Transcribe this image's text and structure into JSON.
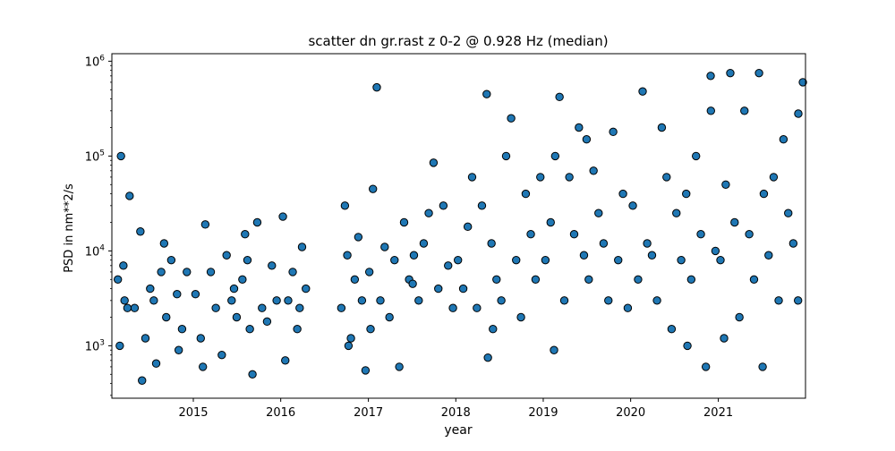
{
  "chart_data": {
    "type": "scatter",
    "title": "scatter dn gr.rast z 0-2 @ 0.928 Hz (median)",
    "xlabel": "year",
    "ylabel": "PSD in nm**2/s",
    "xlim": [
      "2014-01-26",
      "2021-12-31"
    ],
    "ylim": [
      280,
      1200000
    ],
    "yscale": "log",
    "x_ticks": [
      {
        "value": "2015-01-01",
        "label": "2015"
      },
      {
        "value": "2016-01-01",
        "label": "2016"
      },
      {
        "value": "2017-01-01",
        "label": "2017"
      },
      {
        "value": "2018-01-01",
        "label": "2018"
      },
      {
        "value": "2019-01-01",
        "label": "2019"
      },
      {
        "value": "2020-01-01",
        "label": "2020"
      },
      {
        "value": "2021-01-01",
        "label": "2021"
      }
    ],
    "y_ticks": [
      {
        "value": 1000,
        "base": "10",
        "exp": "3"
      },
      {
        "value": 10000,
        "base": "10",
        "exp": "4"
      },
      {
        "value": 100000,
        "base": "10",
        "exp": "5"
      },
      {
        "value": 1000000,
        "base": "10",
        "exp": "6"
      }
    ],
    "marker_color": "#1f77b4",
    "marker_edge": "#000000",
    "grid": false,
    "legend": "none",
    "series": [
      {
        "x": [
          "2014-02-20",
          "2014-03-05",
          "2014-03-20",
          "2014-04-10",
          "2014-05-01",
          "2014-05-25",
          "2014-06-15",
          "2014-07-05",
          "2014-07-30",
          "2014-08-20",
          "2014-09-10",
          "2014-10-01",
          "2014-10-25",
          "2014-11-15",
          "2014-12-05",
          "2014-02-28",
          "2014-03-15",
          "2014-04-01",
          "2014-06-01",
          "2014-07-20",
          "2014-09-01",
          "2014-11-01",
          "2015-01-10",
          "2015-02-01",
          "2015-02-20",
          "2015-03-15",
          "2015-04-05",
          "2015-04-30",
          "2015-05-20",
          "2015-06-10",
          "2015-07-01",
          "2015-07-25",
          "2015-08-15",
          "2015-09-05",
          "2015-09-25",
          "2015-10-15",
          "2015-11-05",
          "2015-11-25",
          "2015-12-15",
          "2015-02-10",
          "2015-06-20",
          "2015-08-05",
          "2015-08-25",
          "2016-01-10",
          "2016-02-01",
          "2016-02-20",
          "2016-03-10",
          "2016-03-30",
          "2016-04-15",
          "2016-01-20",
          "2016-03-20",
          "2016-09-10",
          "2016-09-25",
          "2016-10-05",
          "2016-10-20",
          "2016-11-05",
          "2016-11-20",
          "2016-12-05",
          "2016-12-20",
          "2016-10-10",
          "2017-01-05",
          "2017-01-20",
          "2017-02-05",
          "2017-02-20",
          "2017-03-10",
          "2017-03-30",
          "2017-04-20",
          "2017-05-10",
          "2017-05-30",
          "2017-06-20",
          "2017-07-10",
          "2017-07-30",
          "2017-08-20",
          "2017-09-10",
          "2017-09-30",
          "2017-10-20",
          "2017-11-10",
          "2017-11-30",
          "2017-12-20",
          "2017-01-10",
          "2017-07-05",
          "2018-01-10",
          "2018-02-01",
          "2018-02-20",
          "2018-03-10",
          "2018-03-30",
          "2018-04-20",
          "2018-05-10",
          "2018-05-30",
          "2018-06-20",
          "2018-07-10",
          "2018-07-30",
          "2018-08-20",
          "2018-09-10",
          "2018-09-30",
          "2018-10-20",
          "2018-11-10",
          "2018-11-30",
          "2018-12-20",
          "2018-05-15",
          "2018-06-05",
          "2019-01-10",
          "2019-02-01",
          "2019-02-20",
          "2019-03-10",
          "2019-03-30",
          "2019-04-20",
          "2019-05-10",
          "2019-05-30",
          "2019-06-20",
          "2019-07-10",
          "2019-07-30",
          "2019-08-20",
          "2019-09-10",
          "2019-09-30",
          "2019-10-20",
          "2019-11-10",
          "2019-11-30",
          "2019-12-20",
          "2019-02-15",
          "2019-07-01",
          "2020-01-10",
          "2020-02-01",
          "2020-02-20",
          "2020-03-10",
          "2020-03-30",
          "2020-04-20",
          "2020-05-10",
          "2020-05-30",
          "2020-06-20",
          "2020-07-10",
          "2020-07-30",
          "2020-08-20",
          "2020-09-10",
          "2020-09-30",
          "2020-10-20",
          "2020-11-10",
          "2020-11-30",
          "2020-12-20",
          "2020-08-25",
          "2020-12-01",
          "2021-01-10",
          "2021-02-01",
          "2021-02-20",
          "2021-03-10",
          "2021-03-30",
          "2021-04-20",
          "2021-05-10",
          "2021-05-30",
          "2021-06-20",
          "2021-07-10",
          "2021-07-30",
          "2021-08-20",
          "2021-09-10",
          "2021-09-30",
          "2021-10-20",
          "2021-11-10",
          "2021-11-30",
          "2021-12-20",
          "2021-01-25",
          "2021-07-05",
          "2021-12-01"
        ],
        "y": [
          5000,
          100000,
          3000,
          38000,
          2500,
          16000,
          1200,
          4000,
          650,
          6000,
          2000,
          8000,
          3500,
          1500,
          6000,
          1000,
          7000,
          2500,
          430,
          3000,
          12000,
          900,
          3500,
          1200,
          19000,
          6000,
          2500,
          800,
          9000,
          3000,
          2000,
          5000,
          8000,
          500,
          20000,
          2500,
          1800,
          7000,
          3000,
          600,
          4000,
          15000,
          1500,
          23000,
          3000,
          6000,
          1500,
          11000,
          4000,
          700,
          2500,
          2500,
          30000,
          9000,
          1200,
          5000,
          14000,
          3000,
          550,
          1000,
          6000,
          45000,
          530000,
          3000,
          11000,
          2000,
          8000,
          600,
          20000,
          5000,
          9000,
          3000,
          12000,
          25000,
          85000,
          4000,
          30000,
          7000,
          2500,
          1500,
          4500,
          8000,
          4000,
          18000,
          60000,
          2500,
          30000,
          450000,
          12000,
          5000,
          3000,
          100000,
          250000,
          8000,
          2000,
          40000,
          15000,
          5000,
          60000,
          750,
          1500,
          8000,
          20000,
          100000,
          420000,
          3000,
          60000,
          15000,
          200000,
          9000,
          5000,
          70000,
          25000,
          12000,
          3000,
          180000,
          8000,
          40000,
          2500,
          900,
          150000,
          30000,
          5000,
          480000,
          12000,
          9000,
          3000,
          200000,
          60000,
          1500,
          25000,
          8000,
          40000,
          5000,
          100000,
          15000,
          600,
          700000,
          10000,
          1000,
          300000,
          8000,
          50000,
          750000,
          20000,
          2000,
          300000,
          15000,
          5000,
          750000,
          40000,
          9000,
          60000,
          3000,
          150000,
          25000,
          12000,
          3000,
          600000,
          1200,
          600,
          280000
        ]
      }
    ]
  }
}
